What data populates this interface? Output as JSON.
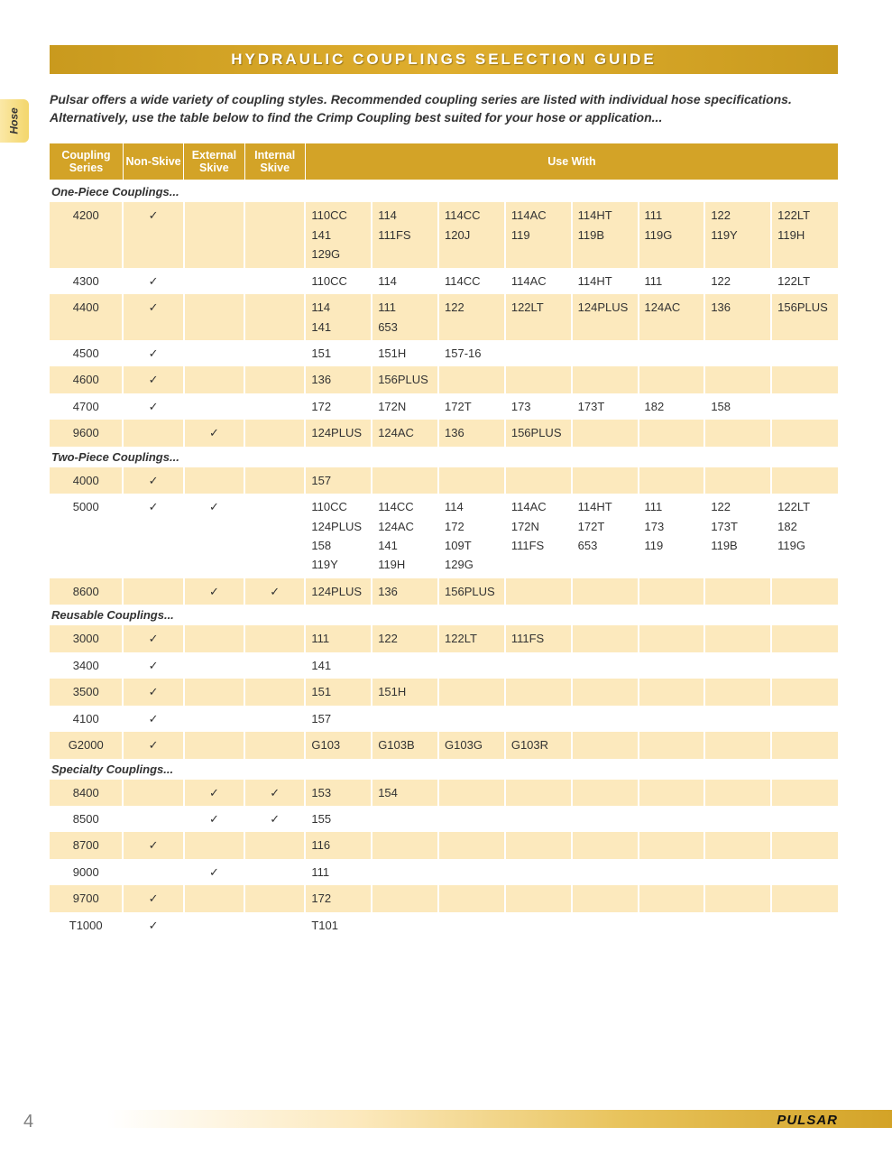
{
  "title": "HYDRAULIC COUPLINGS SELECTION GUIDE",
  "side_tab": "Hose",
  "intro": "Pulsar offers a wide variety of coupling styles. Recommended coupling series are listed with individual hose specifications. Alternatively, use the table below to find the Crimp Coupling best suited for your hose or application...",
  "page_number": "4",
  "brand": "PULSAR",
  "columns": {
    "series": "Coupling\nSeries",
    "non_skive": "Non-Skive",
    "ext_skive": "External\nSkive",
    "int_skive": "Internal\nSkive",
    "use_with": "Use With"
  },
  "use_with_col_count": 8,
  "checkmark": "✓",
  "sections": [
    {
      "label": "One-Piece Couplings...",
      "rows": [
        {
          "series": "4200",
          "non_skive": true,
          "ext_skive": false,
          "int_skive": false,
          "shade": true,
          "use": [
            "110CC",
            "114",
            "114CC",
            "114AC",
            "114HT",
            "111",
            "122",
            "122LT",
            "141",
            "111FS",
            "120J",
            "119",
            "119B",
            "119G",
            "119Y",
            "119H",
            "129G",
            "",
            "",
            "",
            "",
            "",
            "",
            ""
          ]
        },
        {
          "series": "4300",
          "non_skive": true,
          "ext_skive": false,
          "int_skive": false,
          "shade": false,
          "use": [
            "110CC",
            "114",
            "114CC",
            "114AC",
            "114HT",
            "111",
            "122",
            "122LT"
          ]
        },
        {
          "series": "4400",
          "non_skive": true,
          "ext_skive": false,
          "int_skive": false,
          "shade": true,
          "use": [
            "114",
            "111",
            "122",
            "122LT",
            "124PLUS",
            "124AC",
            "136",
            "156PLUS",
            "141",
            "653",
            "",
            "",
            "",
            "",
            "",
            ""
          ]
        },
        {
          "series": "4500",
          "non_skive": true,
          "ext_skive": false,
          "int_skive": false,
          "shade": false,
          "use": [
            "151",
            "151H",
            "157-16",
            "",
            "",
            "",
            "",
            ""
          ]
        },
        {
          "series": "4600",
          "non_skive": true,
          "ext_skive": false,
          "int_skive": false,
          "shade": true,
          "use": [
            "136",
            "156PLUS",
            "",
            "",
            "",
            "",
            "",
            ""
          ]
        },
        {
          "series": "4700",
          "non_skive": true,
          "ext_skive": false,
          "int_skive": false,
          "shade": false,
          "use": [
            "172",
            "172N",
            "172T",
            "173",
            "173T",
            "182",
            "158",
            ""
          ]
        },
        {
          "series": "9600",
          "non_skive": false,
          "ext_skive": true,
          "int_skive": false,
          "shade": true,
          "use": [
            "124PLUS",
            "124AC",
            "136",
            "156PLUS",
            "",
            "",
            "",
            ""
          ]
        }
      ]
    },
    {
      "label": "Two-Piece Couplings...",
      "rows": [
        {
          "series": "4000",
          "non_skive": true,
          "ext_skive": false,
          "int_skive": false,
          "shade": true,
          "use": [
            "157",
            "",
            "",
            "",
            "",
            "",
            "",
            ""
          ]
        },
        {
          "series": "5000",
          "non_skive": true,
          "ext_skive": true,
          "int_skive": false,
          "shade": false,
          "use": [
            "110CC",
            "114CC",
            "114",
            "114AC",
            "114HT",
            "111",
            "122",
            "122LT",
            "124PLUS",
            "124AC",
            "172",
            "172N",
            "172T",
            "173",
            "173T",
            "182",
            "158",
            "141",
            "109T",
            "111FS",
            "653",
            "119",
            "119B",
            "119G",
            "119Y",
            "119H",
            "129G",
            "",
            "",
            "",
            "",
            ""
          ]
        },
        {
          "series": "8600",
          "non_skive": false,
          "ext_skive": true,
          "int_skive": true,
          "shade": true,
          "use": [
            "124PLUS",
            "136",
            "156PLUS",
            "",
            "",
            "",
            "",
            ""
          ]
        }
      ]
    },
    {
      "label": "Reusable Couplings...",
      "rows": [
        {
          "series": "3000",
          "non_skive": true,
          "ext_skive": false,
          "int_skive": false,
          "shade": true,
          "use": [
            "111",
            "122",
            "122LT",
            "111FS",
            "",
            "",
            "",
            ""
          ]
        },
        {
          "series": "3400",
          "non_skive": true,
          "ext_skive": false,
          "int_skive": false,
          "shade": false,
          "use": [
            "141",
            "",
            "",
            "",
            "",
            "",
            "",
            ""
          ]
        },
        {
          "series": "3500",
          "non_skive": true,
          "ext_skive": false,
          "int_skive": false,
          "shade": true,
          "use": [
            "151",
            "151H",
            "",
            "",
            "",
            "",
            "",
            ""
          ]
        },
        {
          "series": "4100",
          "non_skive": true,
          "ext_skive": false,
          "int_skive": false,
          "shade": false,
          "use": [
            "157",
            "",
            "",
            "",
            "",
            "",
            "",
            ""
          ]
        },
        {
          "series": "G2000",
          "non_skive": true,
          "ext_skive": false,
          "int_skive": false,
          "shade": true,
          "use": [
            "G103",
            "G103B",
            "G103G",
            "G103R",
            "",
            "",
            "",
            ""
          ]
        }
      ]
    },
    {
      "label": "Specialty Couplings...",
      "rows": [
        {
          "series": "8400",
          "non_skive": false,
          "ext_skive": true,
          "int_skive": true,
          "shade": true,
          "use": [
            "153",
            "154",
            "",
            "",
            "",
            "",
            "",
            ""
          ]
        },
        {
          "series": "8500",
          "non_skive": false,
          "ext_skive": true,
          "int_skive": true,
          "shade": false,
          "use": [
            "155",
            "",
            "",
            "",
            "",
            "",
            "",
            ""
          ]
        },
        {
          "series": "8700",
          "non_skive": true,
          "ext_skive": false,
          "int_skive": false,
          "shade": true,
          "use": [
            "116",
            "",
            "",
            "",
            "",
            "",
            "",
            ""
          ]
        },
        {
          "series": "9000",
          "non_skive": false,
          "ext_skive": true,
          "int_skive": false,
          "shade": false,
          "use": [
            "111",
            "",
            "",
            "",
            "",
            "",
            "",
            ""
          ]
        },
        {
          "series": "9700",
          "non_skive": true,
          "ext_skive": false,
          "int_skive": false,
          "shade": true,
          "use": [
            "172",
            "",
            "",
            "",
            "",
            "",
            "",
            ""
          ]
        },
        {
          "series": "T1000",
          "non_skive": true,
          "ext_skive": false,
          "int_skive": false,
          "shade": false,
          "use": [
            "T101",
            "",
            "",
            "",
            "",
            "",
            "",
            ""
          ]
        }
      ]
    }
  ]
}
